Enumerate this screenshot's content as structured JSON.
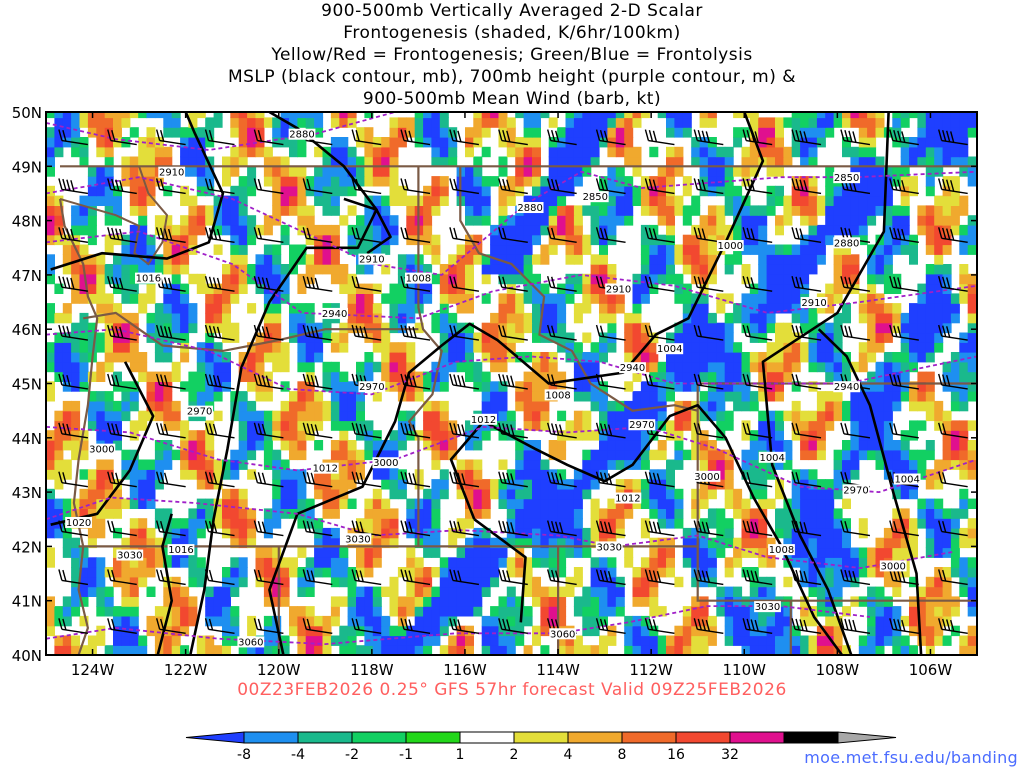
{
  "title": {
    "line1": "900-500mb Vertically Averaged 2-D Scalar",
    "line2": "Frontogenesis (shaded, K/6hr/100km)",
    "line3": "Yellow/Red = Frontogenesis;  Green/Blue = Frontolysis",
    "line4": "MSLP (black contour, mb), 700mb height (purple contour, m) &",
    "line5": "900-500mb Mean Wind (barb, kt)"
  },
  "footer": "00Z23FEB2026 0.25° GFS 57hr forecast Valid 09Z25FEB2026",
  "credit": "moe.met.fsu.edu/banding",
  "map": {
    "lat_labels": [
      "50N",
      "49N",
      "48N",
      "47N",
      "46N",
      "45N",
      "44N",
      "43N",
      "42N",
      "41N",
      "40N"
    ],
    "lon_labels": [
      "124W",
      "122W",
      "120W",
      "118W",
      "116W",
      "114W",
      "112W",
      "110W",
      "108W",
      "106W"
    ],
    "height_labels": [
      {
        "text": "2880",
        "lon": -119.5,
        "lat": 49.6
      },
      {
        "text": "2910",
        "lon": -122.3,
        "lat": 48.9
      },
      {
        "text": "2910",
        "lon": -118.0,
        "lat": 47.3
      },
      {
        "text": "2940",
        "lon": -118.8,
        "lat": 46.3
      },
      {
        "text": "2970",
        "lon": -121.7,
        "lat": 44.5
      },
      {
        "text": "2970",
        "lon": -118.0,
        "lat": 44.95
      },
      {
        "text": "3000",
        "lon": -123.8,
        "lat": 43.8
      },
      {
        "text": "3000",
        "lon": -117.7,
        "lat": 43.55
      },
      {
        "text": "3030",
        "lon": -118.3,
        "lat": 42.15
      },
      {
        "text": "3030",
        "lon": -123.2,
        "lat": 41.85
      },
      {
        "text": "3060",
        "lon": -120.6,
        "lat": 40.25
      },
      {
        "text": "2880",
        "lon": -114.6,
        "lat": 48.25
      },
      {
        "text": "2850",
        "lon": -113.2,
        "lat": 48.45
      },
      {
        "text": "2910",
        "lon": -112.7,
        "lat": 46.75
      },
      {
        "text": "2940",
        "lon": -112.4,
        "lat": 45.3
      },
      {
        "text": "2970",
        "lon": -112.2,
        "lat": 44.25
      },
      {
        "text": "3000",
        "lon": -110.8,
        "lat": 43.3
      },
      {
        "text": "3030",
        "lon": -112.9,
        "lat": 42.0
      },
      {
        "text": "3060",
        "lon": -113.9,
        "lat": 40.4
      },
      {
        "text": "3030",
        "lon": -109.5,
        "lat": 40.9
      },
      {
        "text": "2850",
        "lon": -107.8,
        "lat": 48.8
      },
      {
        "text": "2880",
        "lon": -107.8,
        "lat": 47.6
      },
      {
        "text": "2910",
        "lon": -108.5,
        "lat": 46.5
      },
      {
        "text": "2940",
        "lon": -107.8,
        "lat": 44.95
      },
      {
        "text": "2970",
        "lon": -107.6,
        "lat": 43.05
      },
      {
        "text": "3000",
        "lon": -106.8,
        "lat": 41.65
      }
    ],
    "pressure_labels": [
      {
        "text": "1016",
        "lon": -122.8,
        "lat": 46.95
      },
      {
        "text": "1008",
        "lon": -117.0,
        "lat": 46.95
      },
      {
        "text": "1012",
        "lon": -119.0,
        "lat": 43.45
      },
      {
        "text": "1012",
        "lon": -115.6,
        "lat": 44.35
      },
      {
        "text": "1008",
        "lon": -114.0,
        "lat": 44.8
      },
      {
        "text": "1004",
        "lon": -111.6,
        "lat": 45.65
      },
      {
        "text": "1000",
        "lon": -110.3,
        "lat": 47.55
      },
      {
        "text": "1012",
        "lon": -112.5,
        "lat": 42.9
      },
      {
        "text": "1020",
        "lon": -124.3,
        "lat": 42.45
      },
      {
        "text": "1016",
        "lon": -122.1,
        "lat": 41.95
      },
      {
        "text": "1004",
        "lon": -109.4,
        "lat": 43.65
      },
      {
        "text": "1004",
        "lon": -106.5,
        "lat": 43.25
      },
      {
        "text": "1008",
        "lon": -109.2,
        "lat": 41.95
      }
    ],
    "colorbar": {
      "labels": [
        "-8",
        "-4",
        "-2",
        "-1",
        "1",
        "2",
        "4",
        "8",
        "16",
        "32"
      ],
      "colors": [
        "#1f3fff",
        "#1e8ff0",
        "#1ab98c",
        "#12d062",
        "#22d71a",
        "#ffffff",
        "#e3de3a",
        "#f0a92e",
        "#f06a2a",
        "#f24830",
        "#e0108e",
        "#000000",
        "#a8a8a8"
      ]
    },
    "colors": {
      "height_contour": "#a020c8",
      "pressure_contour": "#000000",
      "state_border": "#7a5a45"
    }
  }
}
